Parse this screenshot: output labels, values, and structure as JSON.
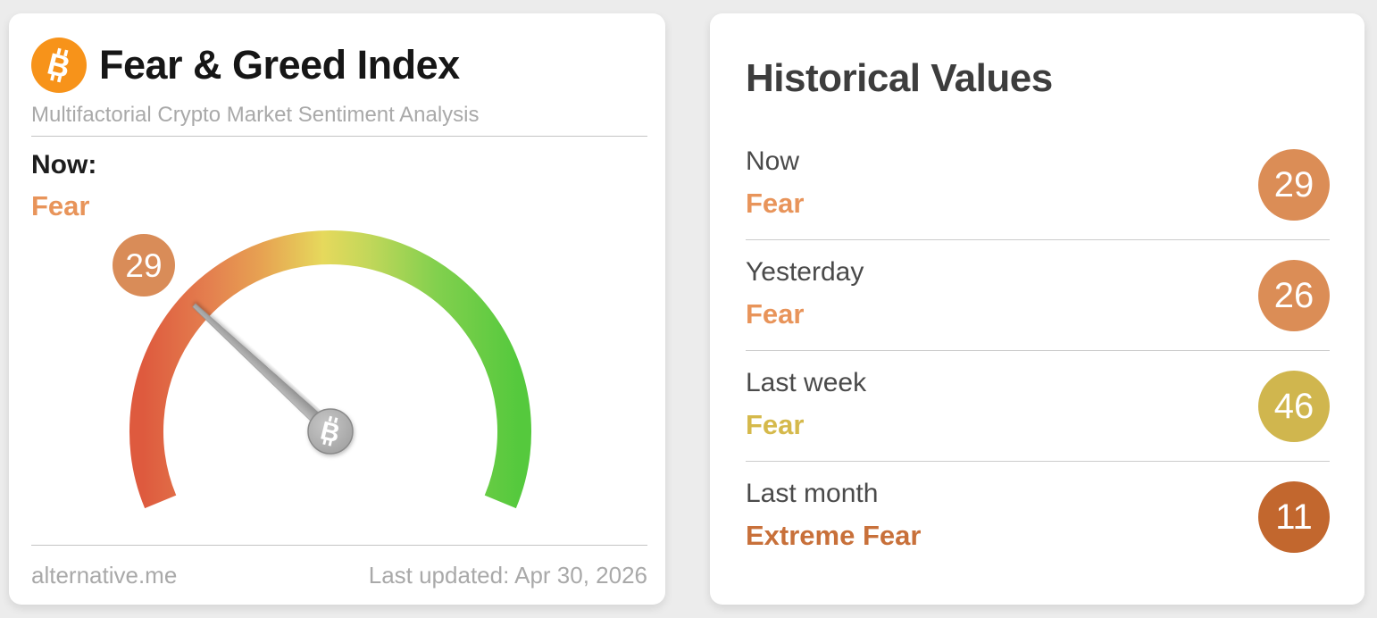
{
  "gauge_card": {
    "title": "Fear & Greed Index",
    "subtitle": "Multifactorial Crypto Market Sentiment Analysis",
    "now_label": "Now:",
    "now_value": "Fear",
    "now_value_color": "#E8945A",
    "gauge": {
      "value": 29,
      "min": 0,
      "max": 100,
      "badge_value": "29",
      "badge_color": "#D98C58",
      "arc_palette": [
        "#DE5A3E",
        "#E4804F",
        "#E7A352",
        "#E6D95C",
        "#C3D75A",
        "#83D04E",
        "#55C93D"
      ],
      "needle_color": "#a3a3a3"
    },
    "footer": {
      "source": "alternative.me",
      "last_updated": "Last updated: Apr 30, 2026"
    }
  },
  "history_card": {
    "title": "Historical Values",
    "rows": [
      {
        "label": "Now",
        "value": "Fear",
        "value_color": "#E8945A",
        "score": "29",
        "badge_color": "#DB8D56"
      },
      {
        "label": "Yesterday",
        "value": "Fear",
        "value_color": "#E8945A",
        "score": "26",
        "badge_color": "#DB8D56"
      },
      {
        "label": "Last week",
        "value": "Fear",
        "value_color": "#D5B94B",
        "score": "46",
        "badge_color": "#D0B64E"
      },
      {
        "label": "Last month",
        "value": "Extreme Fear",
        "value_color": "#C8703A",
        "score": "11",
        "badge_color": "#C2672E"
      }
    ]
  },
  "icons": {
    "header_logo": "bitcoin-icon",
    "gauge_center": "bitcoin-icon"
  }
}
